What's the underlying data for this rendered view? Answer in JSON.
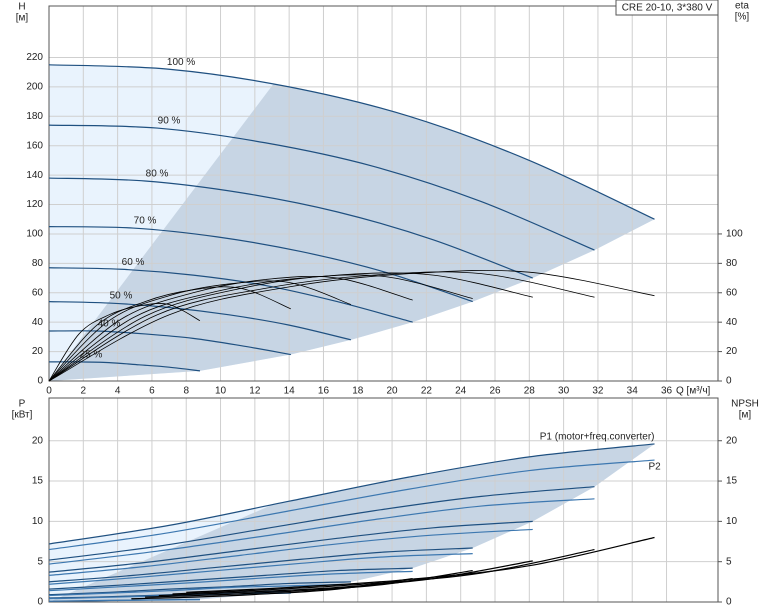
{
  "chart_data": [
    {
      "type": "line",
      "title": "CRE 20-10, 3*380 V",
      "ylabel": "H",
      "ylabel_unit": "[м]",
      "y2label": "eta",
      "y2label_unit": "[%]",
      "xlabel": "Q [м³/ч]",
      "xlim": [
        0,
        39
      ],
      "xticks": [
        0,
        2,
        4,
        6,
        8,
        10,
        12,
        14,
        16,
        18,
        20,
        22,
        24,
        26,
        28,
        30,
        32,
        34,
        36
      ],
      "ylim": [
        0,
        255
      ],
      "yticks": [
        0,
        20,
        40,
        60,
        80,
        100,
        120,
        140,
        160,
        180,
        200,
        220
      ],
      "y2lim": [
        0,
        255
      ],
      "y2ticks": [
        0,
        20,
        40,
        60,
        80,
        100
      ],
      "grid": true,
      "region_colors": [
        "#e9f3fd",
        "#c7d5e4"
      ],
      "series": [
        {
          "name": "100 %",
          "color": "#1f5080",
          "x": [
            0,
            7,
            14,
            21,
            28,
            35.3
          ],
          "values": [
            215,
            212,
            200,
            180,
            150,
            110
          ]
        },
        {
          "name": "90 %",
          "color": "#1f5080",
          "x": [
            0,
            6.3,
            12.6,
            18.9,
            25.2,
            31.8
          ],
          "values": [
            174,
            172,
            162,
            146,
            122,
            89
          ]
        },
        {
          "name": "80 %",
          "color": "#1f5080",
          "x": [
            0,
            5.6,
            11.2,
            16.8,
            22.4,
            28.2
          ],
          "values": [
            138,
            136,
            128,
            115,
            96,
            70
          ]
        },
        {
          "name": "70 %",
          "color": "#1f5080",
          "x": [
            0,
            4.9,
            9.8,
            14.7,
            19.6,
            24.7
          ],
          "values": [
            105,
            104,
            98,
            88,
            74,
            54
          ]
        },
        {
          "name": "60 %",
          "color": "#1f5080",
          "x": [
            0,
            4.2,
            8.4,
            12.6,
            16.8,
            21.2
          ],
          "values": [
            77,
            76,
            72,
            65,
            54,
            40
          ]
        },
        {
          "name": "50 %",
          "color": "#1f5080",
          "x": [
            0,
            3.5,
            7,
            10.5,
            14,
            17.6
          ],
          "values": [
            54,
            53,
            50,
            45,
            38,
            28
          ]
        },
        {
          "name": "40 %",
          "color": "#1f5080",
          "x": [
            0,
            2.8,
            5.6,
            8.4,
            11.2,
            14.1
          ],
          "values": [
            34,
            34,
            32,
            29,
            24,
            18
          ]
        },
        {
          "name": "25 %",
          "color": "#1f5080",
          "x": [
            0,
            1.75,
            3.5,
            5.25,
            7,
            8.8
          ],
          "values": [
            13,
            13,
            12.5,
            11,
            9.4,
            6.9
          ]
        },
        {
          "color": "#000000",
          "axis": "y2",
          "x": [
            0,
            7,
            14,
            21,
            28,
            35.3
          ],
          "values": [
            0,
            45,
            64,
            73,
            74,
            58
          ]
        },
        {
          "color": "#000000",
          "axis": "y2",
          "x": [
            0,
            6.3,
            12.6,
            18.9,
            25.2,
            31.8
          ],
          "values": [
            0,
            45,
            63,
            72,
            73,
            57
          ]
        },
        {
          "color": "#000000",
          "axis": "y2",
          "x": [
            0,
            5.6,
            11.2,
            16.8,
            22.4,
            28.2
          ],
          "values": [
            0,
            44,
            63,
            72,
            72,
            57
          ]
        },
        {
          "color": "#000000",
          "axis": "y2",
          "x": [
            0,
            4.9,
            9.8,
            14.7,
            19.6,
            24.7
          ],
          "values": [
            0,
            43,
            61,
            70,
            71,
            56
          ]
        },
        {
          "color": "#000000",
          "axis": "y2",
          "x": [
            0,
            4.2,
            8.4,
            12.6,
            16.8,
            21.2
          ],
          "values": [
            0,
            42,
            60,
            69,
            70,
            55
          ]
        },
        {
          "color": "#000000",
          "axis": "y2",
          "x": [
            0,
            3.5,
            7,
            10.5,
            14,
            17.6
          ],
          "values": [
            0,
            41,
            58,
            66,
            67,
            52
          ]
        },
        {
          "color": "#000000",
          "axis": "y2",
          "x": [
            0,
            2.8,
            5.6,
            8.4,
            11.2,
            14.1
          ],
          "values": [
            0,
            38,
            54,
            62,
            63,
            49
          ]
        },
        {
          "color": "#000000",
          "axis": "y2",
          "x": [
            0,
            1.75,
            3.5,
            5.25,
            7,
            8.8
          ],
          "values": [
            0,
            32,
            45,
            51,
            52,
            41
          ]
        }
      ]
    },
    {
      "type": "line",
      "ylabel": "P",
      "ylabel_unit": "[кВт]",
      "y2label": "NPSH",
      "y2label_unit": "[м]",
      "xlim": [
        0,
        39
      ],
      "ylim": [
        0,
        25.3
      ],
      "yticks": [
        0,
        5,
        10,
        15,
        20
      ],
      "y2lim": [
        0,
        25.3
      ],
      "y2ticks": [
        0,
        5,
        10,
        15,
        20
      ],
      "grid": true,
      "region_colors": [
        "#e9f3fd",
        "#c7d5e4"
      ],
      "series": [
        {
          "name": "P1 (motor+freq.converter)",
          "color": "#1f5080",
          "x": [
            0,
            7,
            14,
            21,
            28,
            35.3
          ],
          "values": [
            7.2,
            9.5,
            12.5,
            15.5,
            18,
            19.6
          ]
        },
        {
          "name": "P2",
          "color": "#3d78b0",
          "x": [
            0,
            7,
            14,
            21,
            28,
            35.3
          ],
          "values": [
            6.5,
            8.6,
            11.3,
            14,
            16.3,
            17.6
          ]
        },
        {
          "color": "#1f5080",
          "x": [
            0,
            6.3,
            12.6,
            18.9,
            25.2,
            31.8
          ],
          "values": [
            5.2,
            6.9,
            9.1,
            11.3,
            13.1,
            14.3
          ]
        },
        {
          "color": "#3d78b0",
          "x": [
            0,
            6.3,
            12.6,
            18.9,
            25.2,
            31.8
          ],
          "values": [
            4.7,
            6.3,
            8.2,
            10.2,
            11.9,
            12.8
          ]
        },
        {
          "color": "#1f5080",
          "x": [
            0,
            5.6,
            11.2,
            16.8,
            22.4,
            28.2
          ],
          "values": [
            3.7,
            4.9,
            6.4,
            7.9,
            9.2,
            10
          ]
        },
        {
          "color": "#3d78b0",
          "x": [
            0,
            5.6,
            11.2,
            16.8,
            22.4,
            28.2
          ],
          "values": [
            3.3,
            4.4,
            5.8,
            7.2,
            8.3,
            9
          ]
        },
        {
          "color": "#1f5080",
          "x": [
            0,
            4.9,
            9.8,
            14.7,
            19.6,
            24.7
          ],
          "values": [
            2.5,
            3.3,
            4.3,
            5.3,
            6.2,
            6.7
          ]
        },
        {
          "color": "#3d78b0",
          "x": [
            0,
            4.9,
            9.8,
            14.7,
            19.6,
            24.7
          ],
          "values": [
            2.2,
            3,
            3.9,
            4.8,
            5.6,
            6
          ]
        },
        {
          "color": "#1f5080",
          "x": [
            0,
            4.2,
            8.4,
            12.6,
            16.8,
            21.2
          ],
          "values": [
            1.6,
            2.1,
            2.7,
            3.3,
            3.9,
            4.2
          ]
        },
        {
          "color": "#3d78b0",
          "x": [
            0,
            4.2,
            8.4,
            12.6,
            16.8,
            21.2
          ],
          "values": [
            1.4,
            1.9,
            2.4,
            3,
            3.5,
            3.8
          ]
        },
        {
          "color": "#1f5080",
          "x": [
            0,
            3.5,
            7,
            10.5,
            14,
            17.6
          ],
          "values": [
            0.9,
            1.2,
            1.6,
            1.9,
            2.3,
            2.5
          ]
        },
        {
          "color": "#3d78b0",
          "x": [
            0,
            3.5,
            7,
            10.5,
            14,
            17.6
          ],
          "values": [
            0.8,
            1.1,
            1.4,
            1.8,
            2,
            2.2
          ]
        },
        {
          "color": "#1f5080",
          "x": [
            0,
            2.8,
            5.6,
            8.4,
            11.2,
            14.1
          ],
          "values": [
            0.5,
            0.6,
            0.8,
            1,
            1.2,
            1.3
          ]
        },
        {
          "color": "#3d78b0",
          "x": [
            0,
            2.8,
            5.6,
            8.4,
            11.2,
            14.1
          ],
          "values": [
            0.4,
            0.55,
            0.7,
            0.9,
            1,
            1.1
          ]
        },
        {
          "color": "#1f5080",
          "x": [
            0,
            1.75,
            3.5,
            5.25,
            7,
            8.8
          ],
          "values": [
            0.1,
            0.15,
            0.2,
            0.24,
            0.28,
            0.31
          ]
        },
        {
          "color": "#3d78b0",
          "x": [
            0,
            1.75,
            3.5,
            5.25,
            7,
            8.8
          ],
          "values": [
            0.1,
            0.13,
            0.18,
            0.22,
            0.25,
            0.28
          ]
        },
        {
          "color": "#000000",
          "axis": "y2",
          "x": [
            8,
            14,
            21,
            28,
            35.3
          ],
          "values": [
            1.2,
            1.8,
            2.8,
            4.5,
            8
          ]
        },
        {
          "color": "#000000",
          "axis": "y2",
          "x": [
            7.2,
            12.6,
            18.9,
            25.2,
            31.8
          ],
          "values": [
            1,
            1.5,
            2.3,
            3.6,
            6.5
          ]
        },
        {
          "color": "#000000",
          "axis": "y2",
          "x": [
            6.4,
            11.2,
            16.8,
            22.4,
            28.2
          ],
          "values": [
            0.8,
            1.2,
            1.8,
            2.9,
            5.1
          ]
        },
        {
          "color": "#000000",
          "axis": "y2",
          "x": [
            5.6,
            9.8,
            14.7,
            19.6,
            24.7
          ],
          "values": [
            0.6,
            0.9,
            1.4,
            2.2,
            3.9
          ]
        },
        {
          "color": "#000000",
          "axis": "y2",
          "x": [
            4.8,
            8.4,
            12.6,
            16.8,
            21.2
          ],
          "values": [
            0.4,
            0.6,
            1,
            1.6,
            2.9
          ]
        }
      ]
    }
  ]
}
